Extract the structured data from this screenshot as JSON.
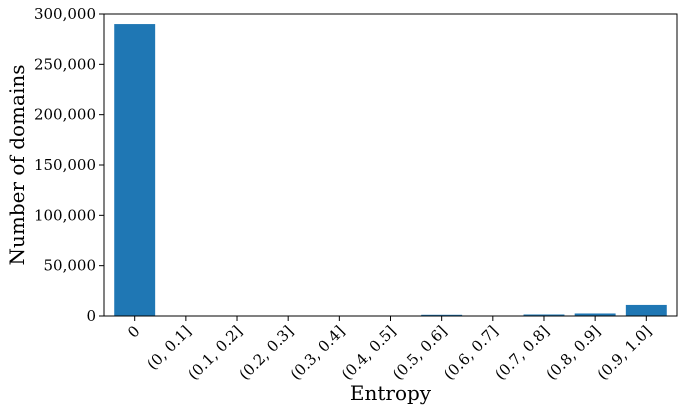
{
  "chart_data": {
    "type": "bar",
    "title": "",
    "xlabel": "Entropy",
    "ylabel": "Number of domains",
    "categories": [
      "0",
      "(0, 0.1]",
      "(0.1, 0.2]",
      "(0.2, 0.3]",
      "(0.3, 0.4]",
      "(0.4, 0.5]",
      "(0.5, 0.6]",
      "(0.6, 0.7]",
      "(0.7, 0.8]",
      "(0.8, 0.9]",
      "(0.9, 1.0]"
    ],
    "values": [
      290000,
      300,
      250,
      250,
      250,
      300,
      1200,
      400,
      1500,
      2500,
      11000
    ],
    "ylim": [
      0,
      300000
    ],
    "yticks": [
      0,
      50000,
      100000,
      150000,
      200000,
      250000,
      300000
    ],
    "ytick_labels": [
      "0",
      "50,000",
      "100,000",
      "150,000",
      "200,000",
      "250,000",
      "300,000"
    ],
    "bar_color": "#1f77b4",
    "grid": false,
    "legend": "none"
  }
}
